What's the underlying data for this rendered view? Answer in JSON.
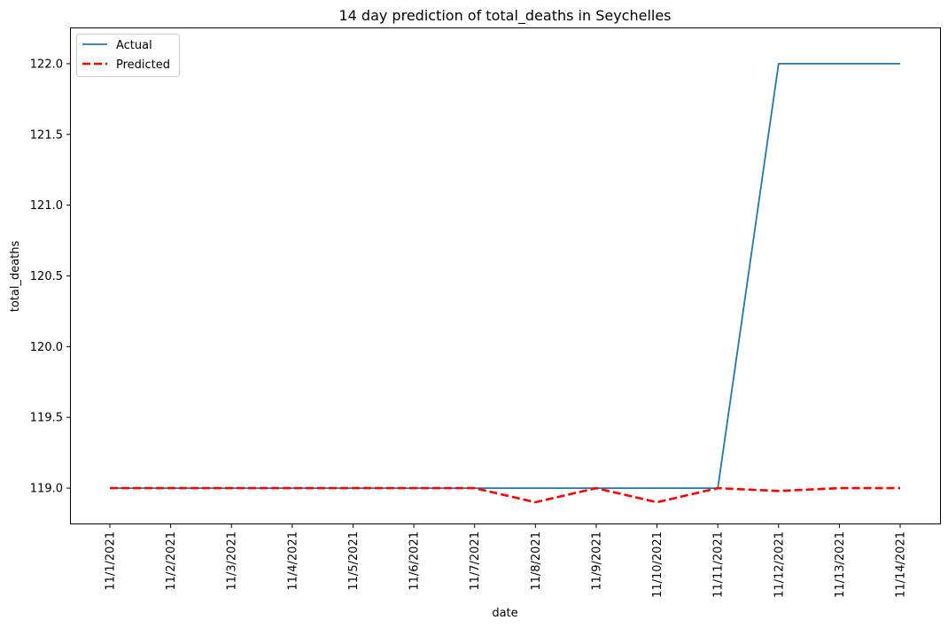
{
  "chart_data": {
    "type": "line",
    "title": "14 day prediction of total_deaths in Seychelles",
    "xlabel": "date",
    "ylabel": "total_deaths",
    "categories": [
      "11/1/2021",
      "11/2/2021",
      "11/3/2021",
      "11/4/2021",
      "11/5/2021",
      "11/6/2021",
      "11/7/2021",
      "11/8/2021",
      "11/9/2021",
      "11/10/2021",
      "11/11/2021",
      "11/12/2021",
      "11/13/2021",
      "11/14/2021"
    ],
    "ylim": [
      118.75,
      122.25
    ],
    "yticks": [
      119.0,
      119.5,
      120.0,
      120.5,
      121.0,
      121.5,
      122.0
    ],
    "ytick_labels": [
      "119.0",
      "119.5",
      "120.0",
      "120.5",
      "121.0",
      "121.5",
      "122.0"
    ],
    "grid": false,
    "legend_position": "top-left",
    "series": [
      {
        "name": "Actual",
        "color": "#1f77b4",
        "style": "solid",
        "values": [
          119,
          119,
          119,
          119,
          119,
          119,
          119,
          119,
          119,
          119,
          119,
          122,
          122,
          122
        ]
      },
      {
        "name": "Predicted",
        "color": "#ff0000",
        "style": "dashed",
        "values": [
          119,
          119,
          119,
          119,
          119,
          119,
          119,
          118.9,
          119,
          118.9,
          119,
          118.98,
          119,
          119
        ]
      }
    ]
  }
}
